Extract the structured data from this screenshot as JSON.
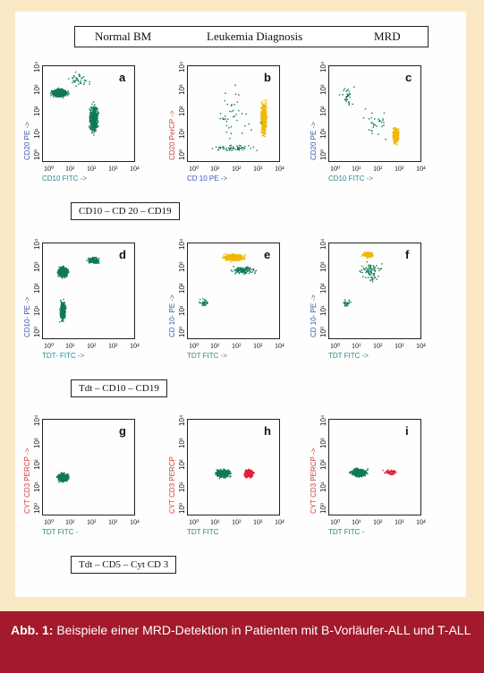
{
  "header": {
    "col1": "Normal BM",
    "col2": "Leukemia Diagnosis",
    "col3": "MRD"
  },
  "rows": [
    {
      "marker": "CD10 – CD 20 – CD19"
    },
    {
      "marker": "Tdt – CD10 – CD19"
    },
    {
      "marker": "Tdt – CD5 – Cyt CD 3"
    }
  ],
  "panels": [
    {
      "letter": "a",
      "ylabel": "CD20 PE ->",
      "xlabel": "CD10 FITC ->",
      "ycolor": "#3a57b0",
      "xcolor": "#2a8a8a"
    },
    {
      "letter": "b",
      "ylabel": "CD20 PerCP ->",
      "xlabel": "CD 10 PE ->",
      "ycolor": "#d23a3a",
      "xcolor": "#3a57b0"
    },
    {
      "letter": "c",
      "ylabel": "CD20 PE ->",
      "xlabel": "CD10 FITC ->",
      "ycolor": "#3a57b0",
      "xcolor": "#2a8a8a"
    },
    {
      "letter": "d",
      "ylabel": "CD10- PE ->",
      "xlabel": "TDT- FITC ->",
      "ycolor": "#3a57b0",
      "xcolor": "#2a8a8a"
    },
    {
      "letter": "e",
      "ylabel": "CD 10- PE ->",
      "xlabel": "TDT FITC ->",
      "ycolor": "#3a57b0",
      "xcolor": "#2a8a8a"
    },
    {
      "letter": "f",
      "ylabel": "CD 10- PE ->",
      "xlabel": "TDT FITC ->",
      "ycolor": "#3a57b0",
      "xcolor": "#2a8a8a"
    },
    {
      "letter": "g",
      "ylabel": "CYT CD3 PERCP ->",
      "xlabel": "TDT FITC -",
      "ycolor": "#d23a3a",
      "xcolor": "#2a8a5a"
    },
    {
      "letter": "h",
      "ylabel": "CYT CD3 PERCP",
      "xlabel": "TDT FITC",
      "ycolor": "#d23a3a",
      "xcolor": "#2a8a5a"
    },
    {
      "letter": "i",
      "ylabel": "CYT CD3 PERCP ->",
      "xlabel": "TDT FITC -",
      "ycolor": "#d23a3a",
      "xcolor": "#2a8a5a"
    }
  ],
  "ticks": [
    "10⁰",
    "10¹",
    "10²",
    "10³",
    "10⁴"
  ],
  "caption": {
    "label": "Abb. 1:",
    "text": " Beispiele einer MRD-Detektion in Patienten mit B-Vorläufer-ALL und T-ALL"
  },
  "colors": {
    "normal": "#0f7a55",
    "blast": "#f0b800",
    "tcell": "#e0203a"
  }
}
